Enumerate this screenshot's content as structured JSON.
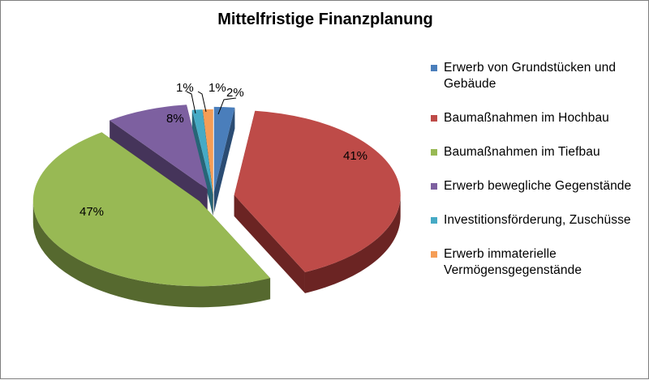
{
  "chart_data": {
    "type": "pie",
    "title": "Mittelfristige Finanzplanung",
    "legend_position": "right",
    "style": "3d-exploded",
    "series": [
      {
        "categories": [
          "Erwerb von Grundstücken und Gebäude",
          "Baumaßnahmen im Hochbau",
          "Baumaßnahmen im Tiefbau",
          "Erwerb bewegliche Gegenstände",
          "Investitionsförderung, Zuschüsse",
          "Erwerb immaterielle Vermögensgegenstände"
        ],
        "values": [
          2,
          41,
          47,
          8,
          1,
          1
        ],
        "labels": [
          "2%",
          "41%",
          "47%",
          "8%",
          "1%",
          "1%"
        ]
      }
    ],
    "colors": [
      "#4a7ebb",
      "#be4b48",
      "#98b954",
      "#7d60a0",
      "#46aac5",
      "#f59d56"
    ],
    "side_colors": [
      "#2b4c73",
      "#6b2423",
      "#56692f",
      "#45345a",
      "#276577",
      "#8e5528"
    ]
  }
}
